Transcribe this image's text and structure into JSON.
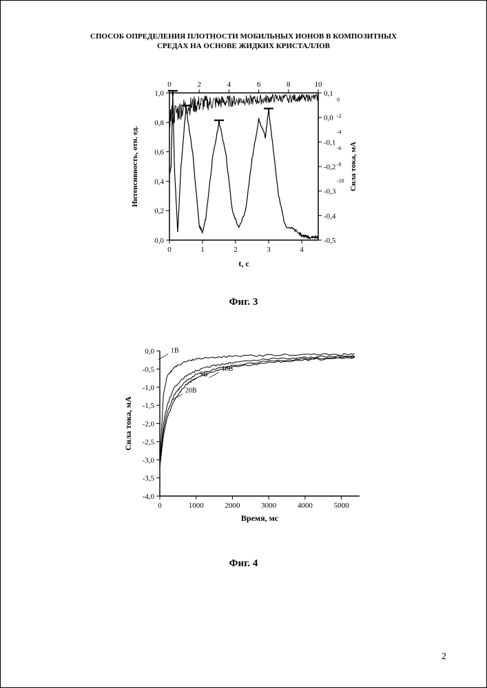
{
  "title_line1": "СПОСОБ ОПРЕДЕЛЕНИЯ ПЛОТНОСТИ МОБИЛЬНЫХ ИОНОВ В КОМПОЗИТНЫХ",
  "title_line2": "СРЕДАХ НА ОСНОВЕ ЖИДКИХ КРИСТАЛЛОВ",
  "page_number": "2",
  "fig3": {
    "caption": "Фиг. 3",
    "x_bottom_label": "t, c",
    "x_bottom_ticks": [
      0,
      1,
      2,
      3,
      4
    ],
    "x_bottom_max": 4.5,
    "y_left_label": "Интенсивность, отн. ед.",
    "y_left_ticks": [
      "0,0",
      "0,2",
      "0,4",
      "0,6",
      "0,8",
      "1,0"
    ],
    "y_left_min": 0.0,
    "y_left_max": 1.0,
    "x_top_ticks": [
      0,
      2,
      4,
      6,
      8,
      10
    ],
    "x_top_max": 10,
    "y_right_label": "Сила тока, мА",
    "y_right_ticks": [
      "-0,5",
      "-0,4",
      "-0,3",
      "-0,2",
      "-0,1",
      "0,0",
      "0,1"
    ],
    "y_right_min": -0.5,
    "y_right_max": 0.1,
    "right_extra_ticks": [
      "-10",
      "-8",
      "-6",
      "-4",
      "-2",
      "0"
    ],
    "line_color": "#000000",
    "background": "#ffffff",
    "intensity_series": {
      "x": [
        0,
        0.05,
        0.1,
        0.15,
        0.25,
        0.35,
        0.5,
        0.7,
        0.9,
        1.0,
        1.1,
        1.3,
        1.5,
        1.7,
        1.9,
        2.1,
        2.3,
        2.5,
        2.7,
        2.9,
        3.0,
        3.1,
        3.3,
        3.5,
        3.7,
        3.9,
        4.0,
        4.1,
        4.2,
        4.3,
        4.4,
        4.5
      ],
      "y": [
        0.45,
        0.5,
        1.0,
        0.5,
        0.05,
        0.5,
        0.9,
        0.6,
        0.1,
        0.05,
        0.15,
        0.55,
        0.8,
        0.6,
        0.2,
        0.08,
        0.2,
        0.55,
        0.82,
        0.7,
        0.88,
        0.7,
        0.3,
        0.1,
        0.08,
        0.05,
        0.03,
        0.03,
        0.02,
        0.02,
        0.02,
        0.02
      ]
    },
    "noise_series": {
      "x_top_range": [
        0,
        10
      ],
      "y_right_envelope": [
        [
          0,
          -0.05,
          0.05
        ],
        [
          1,
          0.0,
          0.08
        ],
        [
          2,
          0.02,
          0.09
        ],
        [
          3,
          0.03,
          0.09
        ],
        [
          4,
          0.04,
          0.09
        ],
        [
          5,
          0.05,
          0.09
        ],
        [
          6,
          0.05,
          0.09
        ],
        [
          7,
          0.06,
          0.095
        ],
        [
          8,
          0.06,
          0.095
        ],
        [
          9,
          0.065,
          0.095
        ],
        [
          10,
          0.065,
          0.095
        ]
      ]
    },
    "markers_T": [
      [
        0.1,
        1.0
      ],
      [
        0.5,
        0.9
      ],
      [
        1.5,
        0.8
      ],
      [
        3.0,
        0.88
      ]
    ]
  },
  "fig4": {
    "caption": "Фиг. 4",
    "x_label": "Время, мс",
    "y_label": "Сила тока, мА",
    "x_ticks": [
      0,
      1000,
      2000,
      3000,
      4000,
      5000
    ],
    "x_max": 5500,
    "y_ticks": [
      "-4,0",
      "-3,5",
      "-3,0",
      "-2,5",
      "-2,0",
      "-1,5",
      "-1,0",
      "-0,5",
      "0,0"
    ],
    "y_min": -4.0,
    "y_max": 0.0,
    "line_color": "#000000",
    "background": "#ffffff",
    "series": [
      {
        "label": "1В",
        "label_xy": [
          300,
          -0.05
        ],
        "x": [
          0,
          100,
          200,
          400,
          700,
          1000,
          1500,
          2000,
          3000,
          4000,
          5000,
          5400
        ],
        "y": [
          -3.05,
          -1.2,
          -0.7,
          -0.45,
          -0.3,
          -0.22,
          -0.18,
          -0.15,
          -0.12,
          -0.1,
          -0.1,
          -0.1
        ]
      },
      {
        "label": "5В",
        "label_xy": [
          1100,
          -0.7
        ],
        "x": [
          0,
          100,
          200,
          400,
          700,
          1000,
          1500,
          2000,
          3000,
          4000,
          5000,
          5400
        ],
        "y": [
          -3.1,
          -2.0,
          -1.5,
          -1.0,
          -0.7,
          -0.55,
          -0.4,
          -0.32,
          -0.22,
          -0.18,
          -0.15,
          -0.14
        ]
      },
      {
        "label": "10В",
        "label_xy": [
          1700,
          -0.55
        ],
        "x": [
          0,
          100,
          200,
          400,
          700,
          1000,
          1500,
          2000,
          3000,
          4000,
          5000,
          5400
        ],
        "y": [
          -3.15,
          -2.2,
          -1.7,
          -1.2,
          -0.85,
          -0.65,
          -0.5,
          -0.4,
          -0.28,
          -0.22,
          -0.18,
          -0.16
        ]
      },
      {
        "label": "20В",
        "label_xy": [
          700,
          -1.15
        ],
        "x": [
          0,
          100,
          200,
          400,
          700,
          1000,
          1500,
          2000,
          3000,
          4000,
          5000,
          5400
        ],
        "y": [
          -3.2,
          -2.35,
          -1.85,
          -1.35,
          -0.95,
          -0.75,
          -0.55,
          -0.45,
          -0.32,
          -0.25,
          -0.2,
          -0.18
        ]
      }
    ]
  }
}
